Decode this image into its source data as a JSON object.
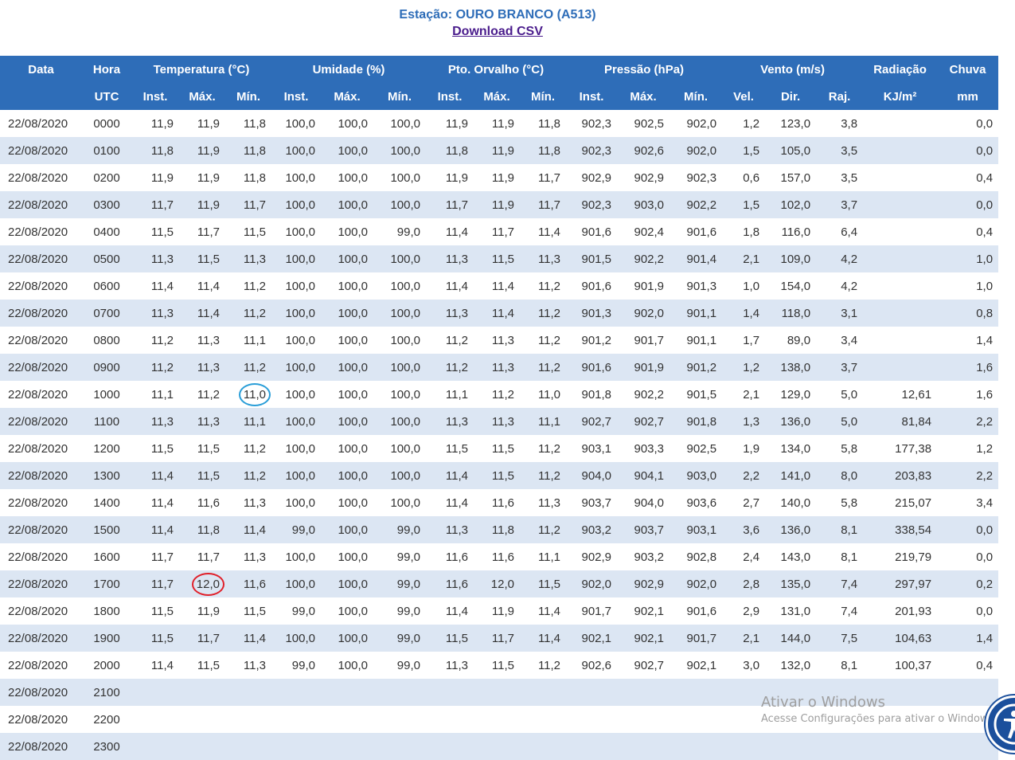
{
  "header": {
    "station_label": "Estação:",
    "station_name": "OURO BRANCO (A513)",
    "download_label": "Download CSV"
  },
  "table": {
    "group_headers": [
      "Data",
      "Hora",
      "Temperatura (°C)",
      "Umidade (%)",
      "Pto. Orvalho (°C)",
      "Pressão (hPa)",
      "Vento (m/s)",
      "Radiação",
      "Chuva"
    ],
    "sub_headers": [
      "",
      "UTC",
      "Inst.",
      "Máx.",
      "Mín.",
      "Inst.",
      "Máx.",
      "Mín.",
      "Inst.",
      "Máx.",
      "Mín.",
      "Inst.",
      "Máx.",
      "Mín.",
      "Vel.",
      "Dir.",
      "Raj.",
      "KJ/m²",
      "mm"
    ],
    "rows": [
      [
        "22/08/2020",
        "0000",
        "11,9",
        "11,9",
        "11,8",
        "100,0",
        "100,0",
        "100,0",
        "11,9",
        "11,9",
        "11,8",
        "902,3",
        "902,5",
        "902,0",
        "1,2",
        "123,0",
        "3,8",
        "",
        "0,0"
      ],
      [
        "22/08/2020",
        "0100",
        "11,8",
        "11,9",
        "11,8",
        "100,0",
        "100,0",
        "100,0",
        "11,8",
        "11,9",
        "11,8",
        "902,3",
        "902,6",
        "902,0",
        "1,5",
        "105,0",
        "3,5",
        "",
        "0,0"
      ],
      [
        "22/08/2020",
        "0200",
        "11,9",
        "11,9",
        "11,8",
        "100,0",
        "100,0",
        "100,0",
        "11,9",
        "11,9",
        "11,7",
        "902,9",
        "902,9",
        "902,3",
        "0,6",
        "157,0",
        "3,5",
        "",
        "0,4"
      ],
      [
        "22/08/2020",
        "0300",
        "11,7",
        "11,9",
        "11,7",
        "100,0",
        "100,0",
        "100,0",
        "11,7",
        "11,9",
        "11,7",
        "902,3",
        "903,0",
        "902,2",
        "1,5",
        "102,0",
        "3,7",
        "",
        "0,0"
      ],
      [
        "22/08/2020",
        "0400",
        "11,5",
        "11,7",
        "11,5",
        "100,0",
        "100,0",
        "99,0",
        "11,4",
        "11,7",
        "11,4",
        "901,6",
        "902,4",
        "901,6",
        "1,8",
        "116,0",
        "6,4",
        "",
        "0,4"
      ],
      [
        "22/08/2020",
        "0500",
        "11,3",
        "11,5",
        "11,3",
        "100,0",
        "100,0",
        "100,0",
        "11,3",
        "11,5",
        "11,3",
        "901,5",
        "902,2",
        "901,4",
        "2,1",
        "109,0",
        "4,2",
        "",
        "1,0"
      ],
      [
        "22/08/2020",
        "0600",
        "11,4",
        "11,4",
        "11,2",
        "100,0",
        "100,0",
        "100,0",
        "11,4",
        "11,4",
        "11,2",
        "901,6",
        "901,9",
        "901,3",
        "1,0",
        "154,0",
        "4,2",
        "",
        "1,0"
      ],
      [
        "22/08/2020",
        "0700",
        "11,3",
        "11,4",
        "11,2",
        "100,0",
        "100,0",
        "100,0",
        "11,3",
        "11,4",
        "11,2",
        "901,3",
        "902,0",
        "901,1",
        "1,4",
        "118,0",
        "3,1",
        "",
        "0,8"
      ],
      [
        "22/08/2020",
        "0800",
        "11,2",
        "11,3",
        "11,1",
        "100,0",
        "100,0",
        "100,0",
        "11,2",
        "11,3",
        "11,2",
        "901,2",
        "901,7",
        "901,1",
        "1,7",
        "89,0",
        "3,4",
        "",
        "1,4"
      ],
      [
        "22/08/2020",
        "0900",
        "11,2",
        "11,3",
        "11,2",
        "100,0",
        "100,0",
        "100,0",
        "11,2",
        "11,3",
        "11,2",
        "901,6",
        "901,9",
        "901,2",
        "1,2",
        "138,0",
        "3,7",
        "",
        "1,6"
      ],
      [
        "22/08/2020",
        "1000",
        "11,1",
        "11,2",
        "11,0",
        "100,0",
        "100,0",
        "100,0",
        "11,1",
        "11,2",
        "11,0",
        "901,8",
        "902,2",
        "901,5",
        "2,1",
        "129,0",
        "5,0",
        "12,61",
        "1,6"
      ],
      [
        "22/08/2020",
        "1100",
        "11,3",
        "11,3",
        "11,1",
        "100,0",
        "100,0",
        "100,0",
        "11,3",
        "11,3",
        "11,1",
        "902,7",
        "902,7",
        "901,8",
        "1,3",
        "136,0",
        "5,0",
        "81,84",
        "2,2"
      ],
      [
        "22/08/2020",
        "1200",
        "11,5",
        "11,5",
        "11,2",
        "100,0",
        "100,0",
        "100,0",
        "11,5",
        "11,5",
        "11,2",
        "903,1",
        "903,3",
        "902,5",
        "1,9",
        "134,0",
        "5,8",
        "177,38",
        "1,2"
      ],
      [
        "22/08/2020",
        "1300",
        "11,4",
        "11,5",
        "11,2",
        "100,0",
        "100,0",
        "100,0",
        "11,4",
        "11,5",
        "11,2",
        "904,0",
        "904,1",
        "903,0",
        "2,2",
        "141,0",
        "8,0",
        "203,83",
        "2,2"
      ],
      [
        "22/08/2020",
        "1400",
        "11,4",
        "11,6",
        "11,3",
        "100,0",
        "100,0",
        "100,0",
        "11,4",
        "11,6",
        "11,3",
        "903,7",
        "904,0",
        "903,6",
        "2,7",
        "140,0",
        "5,8",
        "215,07",
        "3,4"
      ],
      [
        "22/08/2020",
        "1500",
        "11,4",
        "11,8",
        "11,4",
        "99,0",
        "100,0",
        "99,0",
        "11,3",
        "11,8",
        "11,2",
        "903,2",
        "903,7",
        "903,1",
        "3,6",
        "136,0",
        "8,1",
        "338,54",
        "0,0"
      ],
      [
        "22/08/2020",
        "1600",
        "11,7",
        "11,7",
        "11,3",
        "100,0",
        "100,0",
        "99,0",
        "11,6",
        "11,6",
        "11,1",
        "902,9",
        "903,2",
        "902,8",
        "2,4",
        "143,0",
        "8,1",
        "219,79",
        "0,0"
      ],
      [
        "22/08/2020",
        "1700",
        "11,7",
        "12,0",
        "11,6",
        "100,0",
        "100,0",
        "99,0",
        "11,6",
        "12,0",
        "11,5",
        "902,0",
        "902,9",
        "902,0",
        "2,8",
        "135,0",
        "7,4",
        "297,97",
        "0,2"
      ],
      [
        "22/08/2020",
        "1800",
        "11,5",
        "11,9",
        "11,5",
        "99,0",
        "100,0",
        "99,0",
        "11,4",
        "11,9",
        "11,4",
        "901,7",
        "902,1",
        "901,6",
        "2,9",
        "131,0",
        "7,4",
        "201,93",
        "0,0"
      ],
      [
        "22/08/2020",
        "1900",
        "11,5",
        "11,7",
        "11,4",
        "100,0",
        "100,0",
        "99,0",
        "11,5",
        "11,7",
        "11,4",
        "902,1",
        "902,1",
        "901,7",
        "2,1",
        "144,0",
        "7,5",
        "104,63",
        "1,4"
      ],
      [
        "22/08/2020",
        "2000",
        "11,4",
        "11,5",
        "11,3",
        "99,0",
        "100,0",
        "99,0",
        "11,3",
        "11,5",
        "11,2",
        "902,6",
        "902,7",
        "902,1",
        "3,0",
        "132,0",
        "8,1",
        "100,37",
        "0,4"
      ],
      [
        "22/08/2020",
        "2100",
        "",
        "",
        "",
        "",
        "",
        "",
        "",
        "",
        "",
        "",
        "",
        "",
        "",
        "",
        "",
        "",
        ""
      ],
      [
        "22/08/2020",
        "2200",
        "",
        "",
        "",
        "",
        "",
        "",
        "",
        "",
        "",
        "",
        "",
        "",
        "",
        "",
        "",
        "",
        ""
      ],
      [
        "22/08/2020",
        "2300",
        "",
        "",
        "",
        "",
        "",
        "",
        "",
        "",
        "",
        "",
        "",
        "",
        "",
        "",
        "",
        "",
        ""
      ]
    ],
    "highlights": [
      {
        "row": 10,
        "col": 4,
        "color": "blue"
      },
      {
        "row": 17,
        "col": 3,
        "color": "red"
      }
    ]
  },
  "watermark": {
    "title": "Ativar o Windows",
    "subtitle": "Acesse Configurações para ativar o Windows."
  },
  "icons": {
    "accessibility": "accessibility-icon"
  },
  "colors": {
    "header_blue": "#2e6db8",
    "row_alt": "#dce6f3",
    "link_purple": "#4a1c8c"
  }
}
